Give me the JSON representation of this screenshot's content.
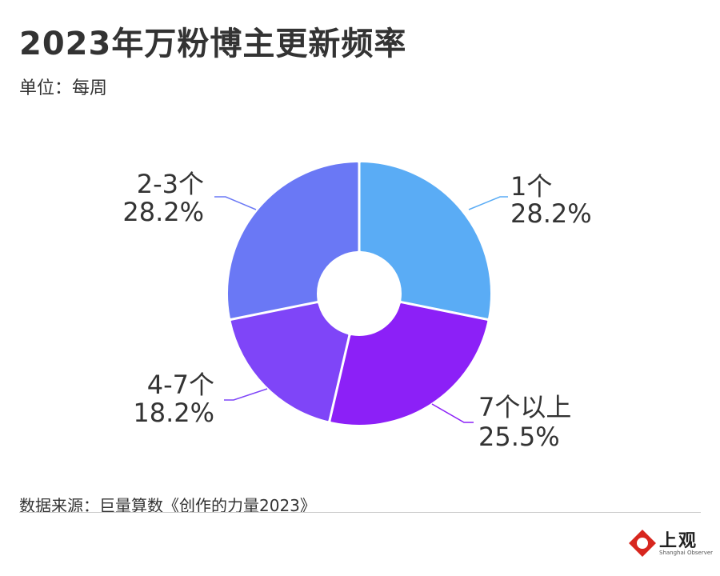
{
  "header": {
    "title": "2023年万粉博主更新频率",
    "subtitle": "单位：每周"
  },
  "footer": {
    "source": "数据来源：巨量算数《创作的力量2023》"
  },
  "logo": {
    "name": "上观",
    "en": "Shanghai Observer",
    "color": "#d7261e"
  },
  "chart_data": {
    "type": "pie",
    "style": "donut",
    "unit": "%",
    "slices": [
      {
        "label": "1个",
        "value": 28.2,
        "display": "28.2%",
        "color": "#5aacf5"
      },
      {
        "label": "7个以上",
        "value": 25.5,
        "display": "25.5%",
        "color": "#8c20f7"
      },
      {
        "label": "4-7个",
        "value": 18.2,
        "display": "18.2%",
        "color": "#7f45f8"
      },
      {
        "label": "2-3个",
        "value": 28.2,
        "display": "28.2%",
        "color": "#6a78f5"
      }
    ],
    "start": "12 o'clock",
    "direction": "clockwise"
  }
}
